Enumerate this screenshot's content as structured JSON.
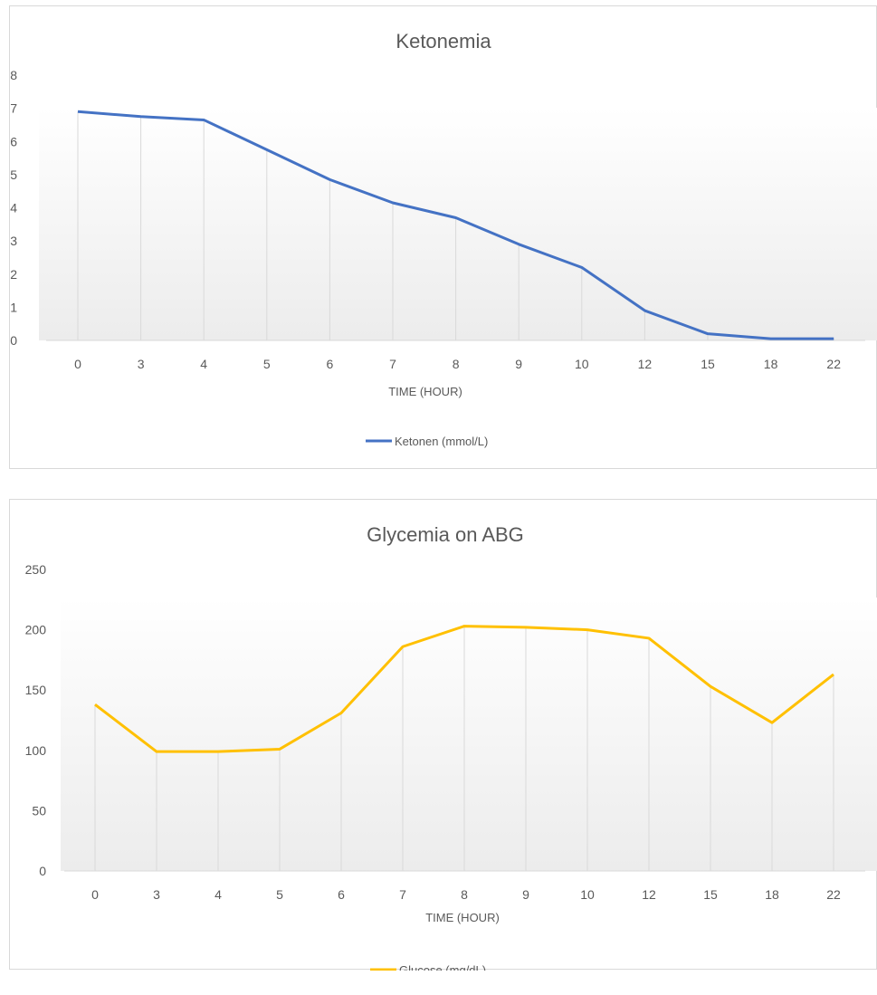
{
  "chart_data": [
    {
      "type": "line",
      "title": "Ketonemia",
      "xlabel": "TIME (HOUR)",
      "ylabel": "",
      "categories": [
        "0",
        "3",
        "4",
        "5",
        "6",
        "7",
        "8",
        "9",
        "10",
        "12",
        "15",
        "18",
        "22"
      ],
      "yticks": [
        "0",
        "1",
        "2",
        "3",
        "4",
        "5",
        "6",
        "7",
        "8"
      ],
      "ylim": [
        0,
        8
      ],
      "grid": "vertical drop lines",
      "legend_position": "bottom",
      "series": [
        {
          "name": "Ketonen (mmol/L)",
          "color": "#4472c4",
          "values": [
            6.9,
            6.75,
            6.65,
            5.75,
            4.85,
            4.15,
            3.7,
            2.9,
            2.2,
            0.9,
            0.2,
            0.05,
            0.05
          ]
        }
      ]
    },
    {
      "type": "line",
      "title": "Glycemia on ABG",
      "xlabel": "TIME (HOUR)",
      "ylabel": "",
      "categories": [
        "0",
        "3",
        "4",
        "5",
        "6",
        "7",
        "8",
        "9",
        "10",
        "12",
        "15",
        "18",
        "22"
      ],
      "yticks": [
        "0",
        "50",
        "100",
        "150",
        "200",
        "250"
      ],
      "ylim": [
        0,
        250
      ],
      "grid": "vertical drop lines",
      "legend_position": "bottom",
      "series": [
        {
          "name": "Glucose (mg/dL)",
          "color": "#ffc000",
          "values": [
            138,
            99,
            99,
            101,
            131,
            186,
            203,
            202,
            200,
            193,
            153,
            123,
            163
          ]
        }
      ]
    }
  ]
}
